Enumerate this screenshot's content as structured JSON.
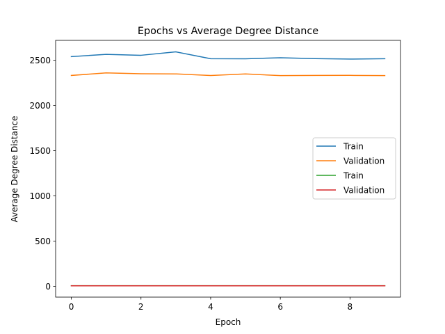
{
  "chart_data": {
    "type": "line",
    "title": "Epochs vs Average Degree Distance",
    "xlabel": "Epoch",
    "ylabel": "Average Degree Distance",
    "xlim": [
      -0.45,
      9.45
    ],
    "ylim": [
      -120,
      2720
    ],
    "xticks": [
      0,
      2,
      4,
      6,
      8
    ],
    "yticks": [
      0,
      500,
      1000,
      1500,
      2000,
      2500
    ],
    "grid": false,
    "legend_position": "center-right",
    "x": [
      0,
      1,
      2,
      3,
      4,
      5,
      6,
      7,
      8,
      9
    ],
    "series": [
      {
        "name": "Train",
        "color": "#1f77b4",
        "values": [
          2540,
          2565,
          2555,
          2593,
          2517,
          2516,
          2528,
          2518,
          2513,
          2517
        ]
      },
      {
        "name": "Validation",
        "color": "#ff7f0e",
        "values": [
          2332,
          2360,
          2351,
          2349,
          2331,
          2349,
          2330,
          2332,
          2333,
          2330
        ]
      },
      {
        "name": "Train",
        "color": "#2ca02c",
        "values": [
          6,
          6,
          6,
          6,
          6,
          6,
          6,
          6,
          6,
          6
        ]
      },
      {
        "name": "Validation",
        "color": "#d62728",
        "values": [
          5,
          5,
          5,
          5,
          5,
          5,
          5,
          5,
          5,
          5
        ]
      }
    ]
  }
}
